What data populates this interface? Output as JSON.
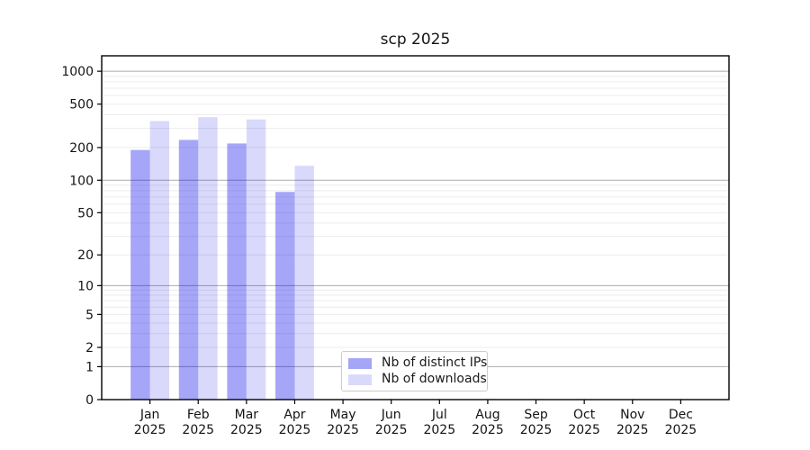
{
  "figure": {
    "title": "scp 2025"
  },
  "legend": {
    "entries": [
      {
        "label": "Nb of distinct IPs",
        "color": "rgba(0,0,235,0.35)"
      },
      {
        "label": "Nb of downloads",
        "color": "rgba(0,0,235,0.15)"
      }
    ]
  },
  "chart_data": {
    "type": "bar",
    "title": "scp 2025",
    "categories": [
      "Jan",
      "Feb",
      "Mar",
      "Apr",
      "May",
      "Jun",
      "Jul",
      "Aug",
      "Sep",
      "Oct",
      "Nov",
      "Dec"
    ],
    "x_tick_year": "2025",
    "series": [
      {
        "name": "Nb of distinct IPs",
        "color": "rgba(0,0,235,0.35)",
        "values": [
          190,
          235,
          218,
          78,
          0,
          0,
          0,
          0,
          0,
          0,
          0,
          0
        ]
      },
      {
        "name": "Nb of downloads",
        "color": "rgba(0,0,235,0.15)",
        "values": [
          350,
          380,
          362,
          136,
          0,
          0,
          0,
          0,
          0,
          0,
          0,
          0
        ]
      }
    ],
    "y_ticks": [
      0,
      1,
      2,
      5,
      10,
      20,
      50,
      100,
      200,
      500,
      1000
    ],
    "y_major_gridlines": [
      1,
      10,
      100,
      1000
    ],
    "y_minor_gridlines": [
      2,
      3,
      4,
      5,
      6,
      7,
      8,
      9,
      20,
      30,
      40,
      50,
      60,
      70,
      80,
      90,
      200,
      300,
      400,
      500,
      600,
      700,
      800,
      900
    ],
    "y_scale": "log1p",
    "ylim": [
      0,
      1400
    ],
    "xlabel": "",
    "ylabel": "",
    "grid": "on",
    "legend_position": "lower-center-inside",
    "bar_group": "two bars per month, distinct IPs on left, downloads on right"
  }
}
